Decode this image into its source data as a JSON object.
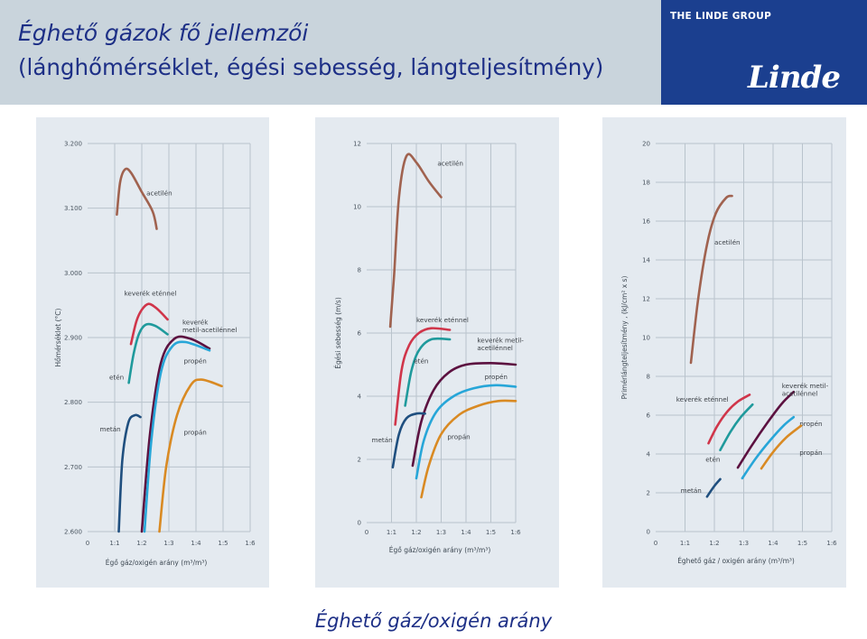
{
  "header": {
    "title_line1": "Éghető gázok fő jellemzői",
    "title_line2": "(lánghőmérséklet, égési sebesség, lángteljesítmény)",
    "logo_group_text": "THE LINDE GROUP",
    "logo_word": "Linde"
  },
  "footer_label": "Éghető gáz/oxigén arány",
  "colors": {
    "acetilen": "#a0624f",
    "keverek_etennel": "#d0354a",
    "eten": "#1f9a9c",
    "keverek_metil": "#5c1140",
    "propen": "#27a6d8",
    "propan": "#d98a23",
    "metan": "#1f4f7f"
  },
  "chart_data": [
    {
      "type": "line",
      "xlabel": "Égő gáz/oxigén arány (m³/m³)",
      "ylabel": "Hőmérséklet (°C)",
      "x_ticks": [
        0,
        1,
        2,
        3,
        4,
        5,
        6
      ],
      "x_tick_labels": [
        "0",
        "1:1",
        "1:2",
        "1:3",
        "1:4",
        "1:5",
        "1:6"
      ],
      "xlim": [
        0,
        6
      ],
      "y_ticks": [
        2600,
        2700,
        2800,
        2900,
        3000,
        3100,
        3200
      ],
      "y_tick_labels": [
        "2.600",
        "2.700",
        "2.800",
        "2.900",
        "3.000",
        "3.100",
        "3.200"
      ],
      "ylim": [
        2600,
        3200
      ],
      "grid": true,
      "series": [
        {
          "name": "acetilén",
          "color_key": "acetilen",
          "label_at": [
            2.17,
            3.12
          ],
          "points": [
            [
              1.08,
              3090
            ],
            [
              1.2,
              3140
            ],
            [
              1.38,
              3160
            ],
            [
              1.6,
              3155
            ],
            [
              2.0,
              3125
            ],
            [
              2.4,
              3095
            ],
            [
              2.55,
              3068
            ]
          ]
        },
        {
          "name": "keverék eténnel",
          "color_key": "keverek_etennel",
          "label_at": [
            1.35,
            2.965
          ],
          "points": [
            [
              1.6,
              2890
            ],
            [
              1.8,
              2925
            ],
            [
              2.0,
              2943
            ],
            [
              2.25,
              2952
            ],
            [
              2.55,
              2945
            ],
            [
              2.95,
              2928
            ]
          ]
        },
        {
          "name": "etén",
          "color_key": "eten",
          "label_at": [
            0.8,
            2.835
          ],
          "points": [
            [
              1.52,
              2830
            ],
            [
              1.7,
              2875
            ],
            [
              1.9,
              2906
            ],
            [
              2.15,
              2920
            ],
            [
              2.5,
              2918
            ],
            [
              2.95,
              2905
            ]
          ]
        },
        {
          "name": "keverék metil-acetilénnel",
          "color_key": "keverek_metil",
          "label_at": [
            3.5,
            2.92
          ],
          "label_lines": [
            "keverék",
            "metil-acetilénnel"
          ],
          "points": [
            [
              2.0,
              2600
            ],
            [
              2.3,
              2750
            ],
            [
              2.7,
              2860
            ],
            [
              3.2,
              2898
            ],
            [
              3.8,
              2898
            ],
            [
              4.5,
              2883
            ]
          ]
        },
        {
          "name": "propén",
          "color_key": "propen",
          "label_at": [
            3.55,
            2.86
          ],
          "points": [
            [
              2.1,
              2600
            ],
            [
              2.35,
              2740
            ],
            [
              2.7,
              2845
            ],
            [
              3.1,
              2885
            ],
            [
              3.6,
              2893
            ],
            [
              4.5,
              2880
            ]
          ]
        },
        {
          "name": "propán",
          "color_key": "propan",
          "label_at": [
            3.55,
            2.75
          ],
          "points": [
            [
              2.65,
              2600
            ],
            [
              2.9,
              2700
            ],
            [
              3.3,
              2780
            ],
            [
              3.8,
              2826
            ],
            [
              4.2,
              2835
            ],
            [
              4.95,
              2825
            ]
          ]
        },
        {
          "name": "metán",
          "color_key": "metan",
          "label_at": [
            0.45,
            2.755
          ],
          "points": [
            [
              1.15,
              2600
            ],
            [
              1.28,
              2710
            ],
            [
              1.5,
              2768
            ],
            [
              1.75,
              2780
            ],
            [
              1.95,
              2777
            ]
          ]
        }
      ]
    },
    {
      "type": "line",
      "xlabel": "Égő gáz/oxigén arány (m³/m³)",
      "ylabel": "Égési sebesség (m/s)",
      "x_ticks": [
        0,
        1,
        2,
        3,
        4,
        5,
        6
      ],
      "x_tick_labels": [
        "0",
        "1:1",
        "1:2",
        "1:3",
        "1:4",
        "1:5",
        "1:6"
      ],
      "xlim": [
        0,
        6
      ],
      "y_ticks": [
        0,
        2,
        4,
        6,
        8,
        10,
        12
      ],
      "y_tick_labels": [
        "0",
        "2",
        "4",
        "6",
        "8",
        "10",
        "12"
      ],
      "ylim": [
        0,
        12
      ],
      "grid": true,
      "series": [
        {
          "name": "acetilén",
          "color_key": "acetilen",
          "label_at": [
            2.85,
            11.3
          ],
          "points": [
            [
              0.95,
              6.2
            ],
            [
              1.1,
              7.8
            ],
            [
              1.3,
              10.3
            ],
            [
              1.6,
              11.6
            ],
            [
              2.0,
              11.4
            ],
            [
              2.5,
              10.8
            ],
            [
              3.0,
              10.3
            ]
          ]
        },
        {
          "name": "keverék eténnel",
          "color_key": "keverek_etennel",
          "label_at": [
            2.0,
            6.35
          ],
          "points": [
            [
              1.15,
              3.1
            ],
            [
              1.4,
              4.8
            ],
            [
              1.7,
              5.6
            ],
            [
              2.1,
              6.0
            ],
            [
              2.6,
              6.15
            ],
            [
              3.35,
              6.1
            ]
          ]
        },
        {
          "name": "etén",
          "color_key": "eten",
          "label_at": [
            1.9,
            5.05
          ],
          "points": [
            [
              1.55,
              3.7
            ],
            [
              1.8,
              4.8
            ],
            [
              2.1,
              5.45
            ],
            [
              2.6,
              5.8
            ],
            [
              3.35,
              5.8
            ]
          ]
        },
        {
          "name": "keverék metil-acetilénnel",
          "color_key": "keverek_metil",
          "label_at": [
            4.45,
            5.7
          ],
          "label_lines": [
            "keverék metil-",
            "acetilénnel"
          ],
          "points": [
            [
              1.85,
              1.8
            ],
            [
              2.2,
              3.2
            ],
            [
              2.7,
              4.2
            ],
            [
              3.3,
              4.75
            ],
            [
              4.0,
              5.0
            ],
            [
              5.0,
              5.05
            ],
            [
              6.0,
              5.0
            ]
          ]
        },
        {
          "name": "propén",
          "color_key": "propen",
          "label_at": [
            4.75,
            4.55
          ],
          "points": [
            [
              2.0,
              1.4
            ],
            [
              2.3,
              2.6
            ],
            [
              2.8,
              3.5
            ],
            [
              3.5,
              4.0
            ],
            [
              4.3,
              4.25
            ],
            [
              5.2,
              4.35
            ],
            [
              6.0,
              4.3
            ]
          ]
        },
        {
          "name": "propán",
          "color_key": "propan",
          "label_at": [
            3.25,
            2.65
          ],
          "points": [
            [
              2.2,
              0.8
            ],
            [
              2.5,
              1.8
            ],
            [
              3.0,
              2.8
            ],
            [
              3.7,
              3.4
            ],
            [
              4.5,
              3.7
            ],
            [
              5.3,
              3.85
            ],
            [
              6.0,
              3.85
            ]
          ]
        },
        {
          "name": "metán",
          "color_key": "metan",
          "label_at": [
            0.2,
            2.55
          ],
          "points": [
            [
              1.05,
              1.75
            ],
            [
              1.3,
              2.8
            ],
            [
              1.6,
              3.3
            ],
            [
              2.0,
              3.45
            ],
            [
              2.35,
              3.45
            ]
          ]
        }
      ]
    },
    {
      "type": "line",
      "xlabel": "Éghető gáz / oxigén arány (m³/m³)",
      "ylabel": "Primérlángteljesítmény , (kJ/cm² x s)",
      "x_ticks": [
        0,
        1,
        2,
        3,
        4,
        5,
        6
      ],
      "x_tick_labels": [
        "0",
        "1:1",
        "1:2",
        "1:3",
        "1:4",
        "1:5",
        "1:6"
      ],
      "xlim": [
        0,
        6
      ],
      "y_ticks": [
        0,
        2,
        4,
        6,
        8,
        10,
        12,
        14,
        16,
        18,
        20
      ],
      "y_tick_labels": [
        "0",
        "2",
        "4",
        "6",
        "8",
        "10",
        "12",
        "14",
        "16",
        "18",
        "20"
      ],
      "ylim": [
        0,
        20
      ],
      "grid": true,
      "series": [
        {
          "name": "acetilén",
          "color_key": "acetilen",
          "label_at": [
            2.0,
            14.8
          ],
          "points": [
            [
              1.2,
              8.7
            ],
            [
              1.45,
              12.0
            ],
            [
              1.75,
              14.8
            ],
            [
              2.05,
              16.4
            ],
            [
              2.4,
              17.2
            ],
            [
              2.6,
              17.3
            ]
          ]
        },
        {
          "name": "keverék eténnel",
          "color_key": "keverek_etennel",
          "label_at": [
            0.7,
            6.7
          ],
          "points": [
            [
              1.8,
              4.55
            ],
            [
              2.1,
              5.45
            ],
            [
              2.45,
              6.2
            ],
            [
              2.8,
              6.7
            ],
            [
              3.2,
              7.05
            ]
          ]
        },
        {
          "name": "etén",
          "color_key": "eten",
          "label_at": [
            1.7,
            3.6
          ],
          "points": [
            [
              2.2,
              4.2
            ],
            [
              2.55,
              5.15
            ],
            [
              2.9,
              5.9
            ],
            [
              3.3,
              6.55
            ]
          ]
        },
        {
          "name": "keverék metil-acetilénnel",
          "color_key": "keverek_metil",
          "label_at": [
            4.3,
            7.4
          ],
          "label_lines": [
            "keverék metil-",
            "acetilénnel"
          ],
          "points": [
            [
              2.8,
              3.3
            ],
            [
              3.3,
              4.5
            ],
            [
              3.8,
              5.6
            ],
            [
              4.3,
              6.6
            ],
            [
              4.7,
              7.2
            ]
          ]
        },
        {
          "name": "propén",
          "color_key": "propen",
          "label_at": [
            4.9,
            5.45
          ],
          "points": [
            [
              2.95,
              2.75
            ],
            [
              3.4,
              3.75
            ],
            [
              3.9,
              4.7
            ],
            [
              4.35,
              5.45
            ],
            [
              4.7,
              5.9
            ]
          ]
        },
        {
          "name": "propán",
          "color_key": "propan",
          "label_at": [
            4.9,
            3.95
          ],
          "points": [
            [
              3.6,
              3.25
            ],
            [
              4.0,
              4.1
            ],
            [
              4.45,
              4.85
            ],
            [
              4.95,
              5.45
            ]
          ]
        },
        {
          "name": "metán",
          "color_key": "metan",
          "label_at": [
            0.85,
            2.0
          ],
          "points": [
            [
              1.75,
              1.8
            ],
            [
              2.0,
              2.35
            ],
            [
              2.2,
              2.7
            ]
          ]
        }
      ]
    }
  ]
}
